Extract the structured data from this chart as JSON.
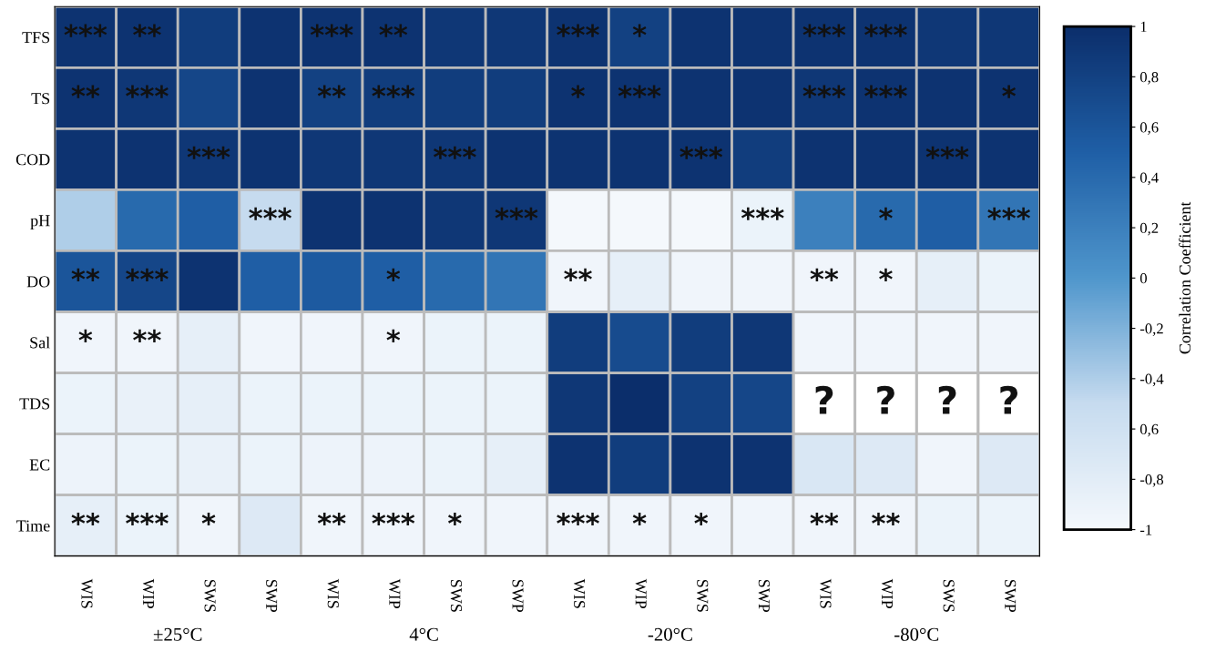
{
  "chart_data": {
    "type": "heatmap",
    "categories": [
      "WIS",
      "WIP",
      "SWS",
      "SWP",
      "WIS",
      "WIP",
      "SWS",
      "SWP",
      "WIS",
      "WIP",
      "SWS",
      "SWP",
      "WIS",
      "WIP",
      "SWS",
      "SWP"
    ],
    "y_categories": [
      "TFS",
      "TS",
      "COD",
      "pH",
      "DO",
      "Sal",
      "TDS",
      "EC",
      "Time"
    ],
    "cells": [
      [
        0.95,
        0.95,
        0.85,
        0.95,
        0.95,
        0.95,
        0.9,
        0.9,
        0.95,
        0.8,
        0.95,
        0.95,
        0.95,
        0.95,
        0.9,
        0.9
      ],
      [
        0.95,
        0.9,
        0.75,
        0.95,
        0.8,
        0.85,
        0.85,
        0.85,
        0.95,
        0.95,
        0.95,
        0.95,
        0.9,
        0.95,
        0.95,
        0.95
      ],
      [
        0.95,
        0.95,
        0.9,
        0.95,
        0.9,
        0.9,
        0.9,
        0.95,
        0.95,
        0.95,
        0.95,
        0.85,
        0.95,
        0.95,
        0.95,
        0.95
      ],
      [
        -0.4,
        0.4,
        0.5,
        -0.5,
        0.95,
        0.95,
        0.9,
        0.9,
        -1,
        -1,
        -1,
        -0.9,
        0.2,
        0.4,
        0.5,
        0.3
      ],
      [
        0.6,
        0.75,
        0.95,
        0.5,
        0.55,
        0.5,
        0.4,
        0.3,
        -0.95,
        -0.85,
        -0.95,
        -0.95,
        -0.95,
        -0.95,
        -0.85,
        -0.9
      ],
      [
        -0.95,
        -0.95,
        -0.85,
        -0.95,
        -0.95,
        -0.95,
        -0.9,
        -0.9,
        0.85,
        0.7,
        0.85,
        0.9,
        -0.95,
        -0.95,
        -0.95,
        -0.95
      ],
      [
        -0.9,
        -0.88,
        -0.85,
        -0.9,
        -0.9,
        -0.9,
        -0.9,
        -0.9,
        0.9,
        1,
        0.8,
        0.75,
        null,
        null,
        null,
        null
      ],
      [
        -0.92,
        -0.9,
        -0.88,
        -0.9,
        -0.92,
        -0.92,
        -0.9,
        -0.85,
        0.95,
        0.85,
        0.95,
        0.95,
        -0.7,
        -0.75,
        -0.95,
        -0.75
      ],
      [
        -0.85,
        -0.9,
        -0.95,
        -0.75,
        -0.95,
        -0.95,
        -0.95,
        -0.95,
        -0.95,
        -0.95,
        -0.95,
        -0.95,
        -0.95,
        -0.95,
        -0.9,
        -0.9
      ]
    ],
    "cell_labels": [
      [
        "***",
        "**",
        null,
        null,
        "***",
        "**",
        null,
        null,
        "***",
        "*",
        null,
        null,
        "***",
        "***",
        null,
        null
      ],
      [
        "**",
        "***",
        null,
        null,
        "**",
        "***",
        null,
        null,
        "*",
        "***",
        null,
        null,
        "***",
        "***",
        null,
        "*"
      ],
      [
        null,
        null,
        "***",
        null,
        null,
        null,
        "***",
        null,
        null,
        null,
        "***",
        null,
        null,
        null,
        "***",
        null
      ],
      [
        null,
        null,
        null,
        "***",
        null,
        null,
        null,
        "***",
        null,
        null,
        null,
        "***",
        null,
        "*",
        null,
        "***"
      ],
      [
        "**",
        "***",
        null,
        null,
        null,
        "*",
        null,
        null,
        "**",
        null,
        null,
        null,
        "**",
        "*",
        null,
        null
      ],
      [
        "*",
        "**",
        null,
        null,
        null,
        "*",
        null,
        null,
        null,
        null,
        null,
        null,
        null,
        null,
        null,
        null
      ],
      [
        null,
        null,
        null,
        null,
        null,
        null,
        null,
        null,
        null,
        null,
        null,
        null,
        "?",
        "?",
        "?",
        "?"
      ],
      [
        null,
        null,
        null,
        null,
        null,
        null,
        null,
        null,
        null,
        null,
        null,
        null,
        null,
        null,
        null,
        null
      ],
      [
        "**",
        "***",
        "*",
        null,
        "**",
        "***",
        "*",
        null,
        "***",
        "*",
        "*",
        null,
        "**",
        "**",
        null,
        null
      ]
    ],
    "clim": [
      -1,
      1
    ],
    "cticks": [
      1,
      {
        "value": 0.8,
        "label": "0,8"
      },
      {
        "value": 0.6,
        "label": "0,6"
      },
      {
        "value": 0.4,
        "label": "0,4"
      },
      {
        "value": 0.2,
        "label": "0,2"
      },
      0,
      {
        "value": -0.2,
        "label": "-0,2"
      },
      {
        "value": -0.4,
        "label": "-0,4"
      },
      {
        "value": -0.6,
        "label": "0,6"
      },
      {
        "value": -0.8,
        "label": "-0,8"
      },
      -1
    ],
    "clabel": "Correlation Coefficient",
    "annotations": [
      "±25°C",
      "4°C",
      "-20°C",
      "-80°C"
    ]
  }
}
